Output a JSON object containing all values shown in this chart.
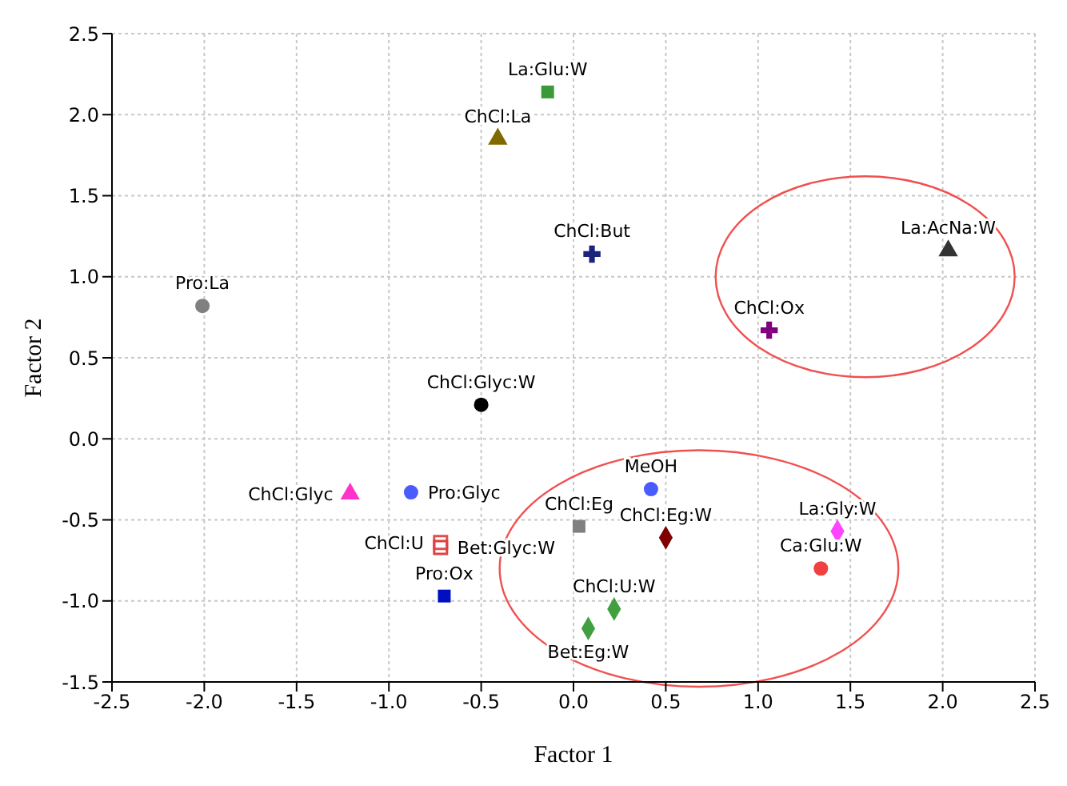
{
  "chart_data": {
    "type": "scatter",
    "xlabel": "Factor 1",
    "ylabel": "Factor 2",
    "xlim": [
      -2.5,
      2.5
    ],
    "ylim": [
      -1.5,
      2.5
    ],
    "xticks": [
      -2.5,
      {
        "value": -2,
        "label": "-2.0"
      },
      -1.5,
      {
        "value": -1,
        "label": "-1.0"
      },
      -0.5,
      {
        "value": 0,
        "label": "0.0"
      },
      0.5,
      {
        "value": 1,
        "label": "1.0"
      },
      1.5,
      {
        "value": 2,
        "label": "2.0"
      },
      2.5
    ],
    "yticks": [
      -1.5,
      {
        "value": -1,
        "label": "-1.0"
      },
      -0.5,
      {
        "value": 0,
        "label": "0.0"
      },
      0.5,
      {
        "value": 1,
        "label": "1.0"
      },
      1.5,
      {
        "value": 2,
        "label": "2.0"
      },
      2.5
    ],
    "grid": true,
    "legend": false,
    "series": [
      {
        "name": "La:Glu:W",
        "color": "#3a9a3a",
        "marker": "square",
        "x": [
          -0.14
        ],
        "values": [
          2.14
        ]
      },
      {
        "name": "ChCl:La",
        "color": "#7f6a00",
        "marker": "triangle",
        "x": [
          -0.41
        ],
        "values": [
          1.85
        ]
      },
      {
        "name": "ChCl:But",
        "color": "#1a237e",
        "marker": "cross",
        "x": [
          0.1
        ],
        "values": [
          1.14
        ]
      },
      {
        "name": "La:AcNa:W",
        "color": "#333333",
        "marker": "triangle",
        "x": [
          2.03
        ],
        "values": [
          1.16
        ]
      },
      {
        "name": "Pro:La",
        "color": "#808080",
        "marker": "circle",
        "x": [
          -2.01
        ],
        "values": [
          0.82
        ]
      },
      {
        "name": "ChCl:Ox",
        "color": "#800080",
        "marker": "cross",
        "x": [
          1.06
        ],
        "values": [
          0.67
        ]
      },
      {
        "name": "ChCl:Glyc:W",
        "color": "#000000",
        "marker": "circle",
        "x": [
          -0.5
        ],
        "values": [
          0.21
        ]
      },
      {
        "name": "ChCl:Glyc",
        "color": "#ff33cc",
        "marker": "triangle",
        "x": [
          -1.21
        ],
        "values": [
          -0.34
        ]
      },
      {
        "name": "Pro:Glyc",
        "color": "#4b5cff",
        "marker": "circle",
        "x": [
          -0.88
        ],
        "values": [
          -0.33
        ]
      },
      {
        "name": "ChCl:U",
        "color": "#e05050",
        "marker": "square",
        "x": [
          -0.72
        ],
        "values": [
          -0.64
        ]
      },
      {
        "name": "Bet:Glyc:W",
        "color": "#e04040",
        "marker": "square",
        "x": [
          -0.72
        ],
        "values": [
          -0.67
        ]
      },
      {
        "name": "Pro:Ox",
        "color": "#0010c0",
        "marker": "square",
        "x": [
          -0.7
        ],
        "values": [
          -0.97
        ]
      },
      {
        "name": "ChCl:Eg",
        "color": "#808080",
        "marker": "square",
        "x": [
          0.03
        ],
        "values": [
          -0.54
        ]
      },
      {
        "name": "MeOH",
        "color": "#4b5cff",
        "marker": "circle",
        "x": [
          0.42
        ],
        "values": [
          -0.31
        ]
      },
      {
        "name": "ChCl:Eg:W",
        "color": "#800000",
        "marker": "diamond",
        "x": [
          0.5
        ],
        "values": [
          -0.61
        ]
      },
      {
        "name": "La:Gly:W",
        "color": "#ff44ff",
        "marker": "diamond",
        "x": [
          1.43
        ],
        "values": [
          -0.57
        ]
      },
      {
        "name": "Ca:Glu:W",
        "color": "#f04040",
        "marker": "circle",
        "x": [
          1.34
        ],
        "values": [
          -0.8
        ]
      },
      {
        "name": "ChCl:U:W",
        "color": "#40a040",
        "marker": "diamond",
        "x": [
          0.22
        ],
        "values": [
          -1.05
        ]
      },
      {
        "name": "Bet:Eg:W",
        "color": "#40a040",
        "marker": "diamond",
        "x": [
          0.08
        ],
        "values": [
          -1.17
        ]
      }
    ]
  }
}
